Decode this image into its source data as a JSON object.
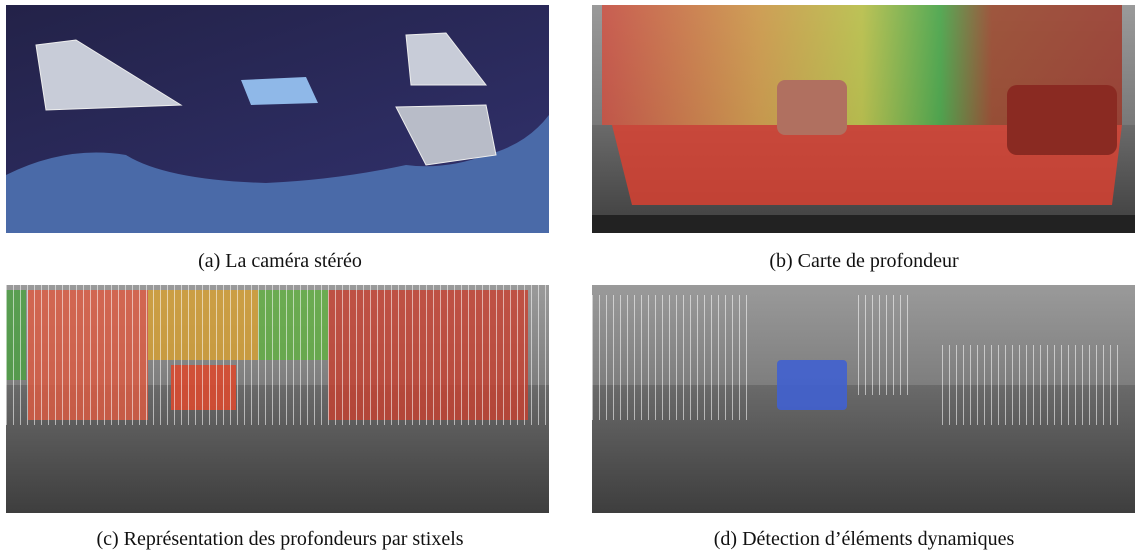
{
  "figure": {
    "panels": [
      {
        "caption": "(a) La caméra stéréo"
      },
      {
        "caption": "(b) Carte de profondeur"
      },
      {
        "caption": "(c) Représentation des profondeurs par stixels"
      },
      {
        "caption": "(d) Détection d’éléments dynamiques"
      }
    ]
  }
}
